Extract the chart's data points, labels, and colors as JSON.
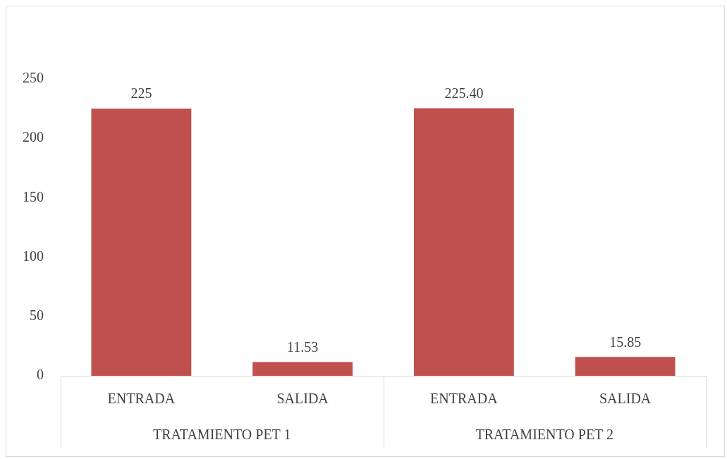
{
  "chart_data": {
    "type": "bar",
    "categories": [
      "ENTRADA",
      "SALIDA",
      "ENTRADA",
      "SALIDA"
    ],
    "values": [
      225,
      11.53,
      225.4,
      15.85
    ],
    "value_labels": [
      "225",
      "11.53",
      "225.40",
      "15.85"
    ],
    "color": "#c0504d",
    "ylim": [
      0,
      250
    ],
    "yticks": [
      0,
      50,
      100,
      150,
      200,
      250
    ],
    "grid": false,
    "legend": false,
    "annotations": [
      "TRATAMIENTO PET 1",
      "TRATAMIENTO PET 2"
    ]
  }
}
